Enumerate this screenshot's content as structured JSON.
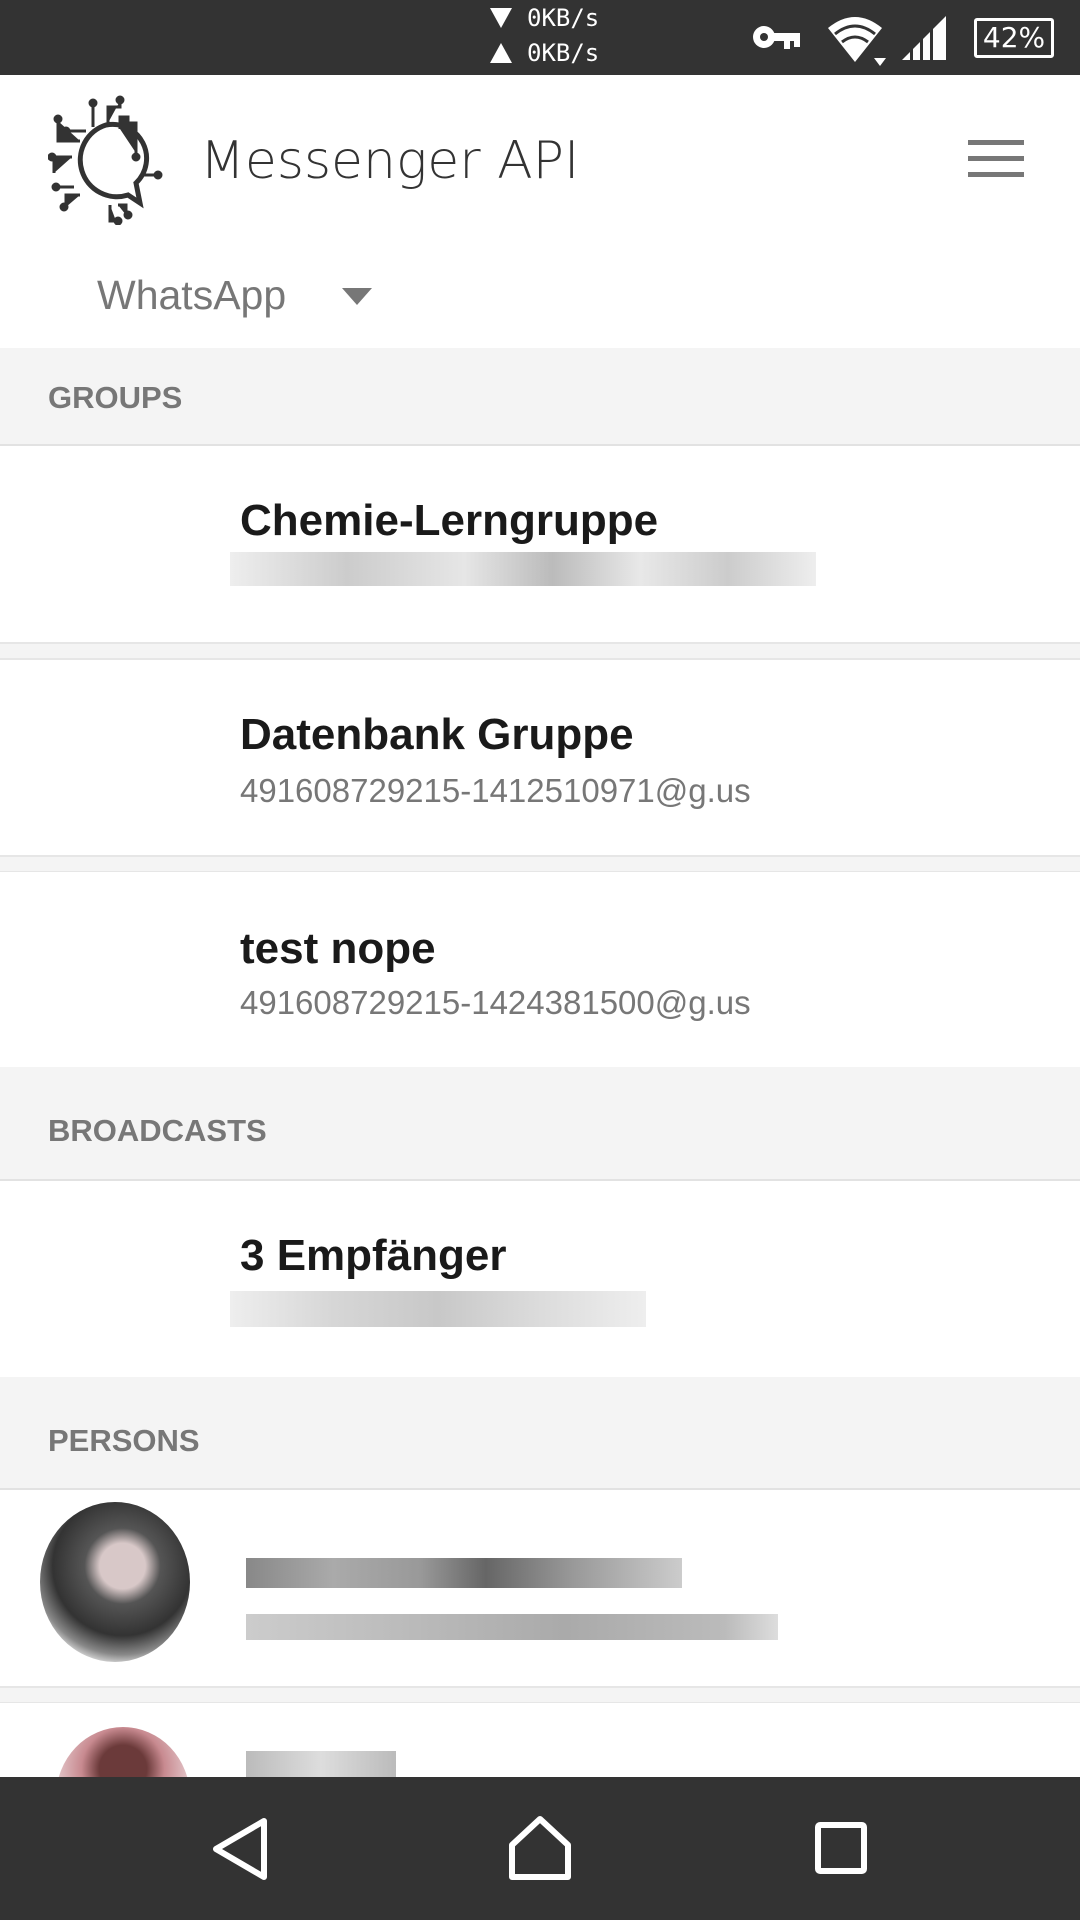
{
  "status_bar": {
    "download": "0KB/s",
    "upload": "0KB/s",
    "battery": "42%",
    "icons": [
      "vpn-key-icon",
      "wifi-icon",
      "signal-icon",
      "battery-icon"
    ]
  },
  "header": {
    "title": "Messenger API",
    "menu_icon": "hamburger-icon"
  },
  "messenger_select": {
    "value": "WhatsApp"
  },
  "groups": {
    "label": "GROUPS",
    "items": [
      {
        "name": "Chemie-Lerngruppe",
        "id": ""
      },
      {
        "name": "Datenbank Gruppe",
        "id": "491608729215-1412510971@g.us"
      },
      {
        "name": "test nope",
        "id": "491608729215-1424381500@g.us"
      }
    ]
  },
  "broadcasts": {
    "label": "BROADCASTS",
    "items": [
      {
        "name": "3 Empfänger",
        "id": ""
      }
    ]
  },
  "persons": {
    "label": "PERSONS"
  },
  "colors": {
    "bars": "#333333",
    "section_bg": "#f4f4f4",
    "text_gray": "#777777"
  }
}
